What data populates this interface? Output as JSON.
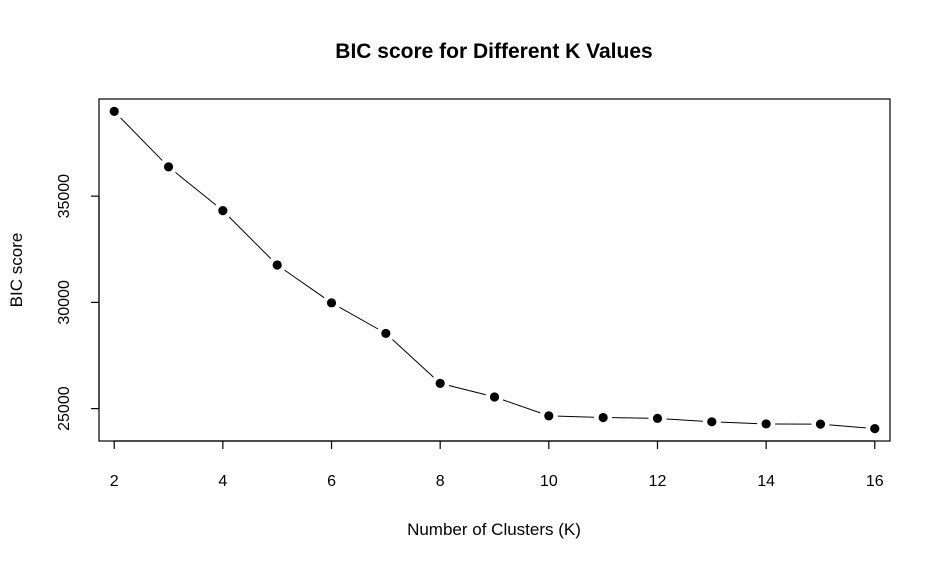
{
  "chart_data": {
    "type": "line",
    "title": "BIC score for Different K Values",
    "xlabel": "Number of Clusters (K)",
    "ylabel": "BIC score",
    "x": [
      2,
      3,
      4,
      5,
      6,
      7,
      8,
      9,
      10,
      11,
      12,
      13,
      14,
      15,
      16
    ],
    "y": [
      38990,
      36380,
      34320,
      31760,
      29980,
      28540,
      26190,
      25550,
      24660,
      24580,
      24540,
      24380,
      24280,
      24270,
      24060
    ],
    "xticks": [
      "2",
      "4",
      "6",
      "8",
      "10",
      "12",
      "14",
      "16"
    ],
    "yticks": [
      "25000",
      "30000",
      "35000"
    ],
    "xlim": [
      1.72,
      16.28
    ],
    "ylim": [
      23476,
      39574
    ],
    "grid": false,
    "legend": "none",
    "colors": {
      "line": "#000000",
      "point": "#000000",
      "frame": "#000000"
    }
  }
}
